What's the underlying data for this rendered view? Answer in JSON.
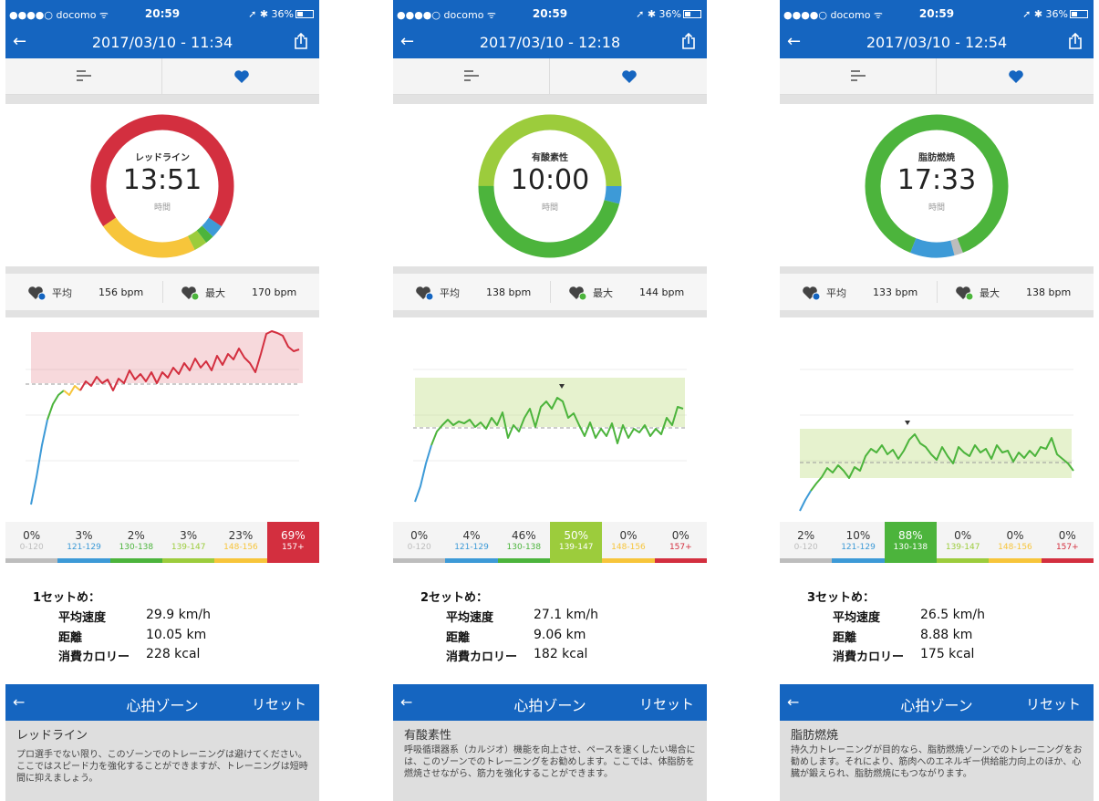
{
  "colors": {
    "primary": "#1565c0",
    "zone_gray": "#bdbdbd",
    "zone_blue": "#3d9ad7",
    "zone_green": "#4cb43c",
    "zone_lightgreen": "#9ccc3c",
    "zone_yellow": "#f7c53b",
    "zone_red": "#d32f3f"
  },
  "screens": [
    {
      "status": {
        "carrier": "●●●●○ docomo ᯤ",
        "time": "20:59",
        "battery": "➚ ✱ 36%"
      },
      "title": "2017/03/10 - 11:34",
      "ring": {
        "label": "レッドライン",
        "time": "13:51",
        "unit": "時間",
        "segments": [
          0,
          3,
          2,
          3,
          23,
          69
        ]
      },
      "avg_label": "平均",
      "avg_value": "156 bpm",
      "max_label": "最大",
      "max_value": "170 bpm",
      "zones": [
        {
          "pct": "0%",
          "range": "0-120"
        },
        {
          "pct": "3%",
          "range": "121-129"
        },
        {
          "pct": "2%",
          "range": "130-138"
        },
        {
          "pct": "3%",
          "range": "139-147"
        },
        {
          "pct": "23%",
          "range": "148-156"
        },
        {
          "pct": "69%",
          "range": "157+"
        }
      ],
      "highlight_zone": 5,
      "summary": {
        "set": "1セットめ：",
        "speed_label": "平均速度",
        "speed": "29.9 km/h",
        "dist_label": "距離",
        "dist": "10.05 km",
        "cal_label": "消費カロリー",
        "cal": "228 kcal"
      },
      "zone_nav": {
        "title": "心拍ゾーン",
        "reset": "リセット"
      },
      "zone_desc": {
        "title": "レッドライン",
        "body": "プロ選手でない限り、このゾーンでのトレーニングは避けてください。ここではスピード力を強化することができますが、トレーニングは短時間に抑えましょう。"
      }
    },
    {
      "status": {
        "carrier": "●●●●○ docomo ᯤ",
        "time": "20:59",
        "battery": "➚ ✱ 36%"
      },
      "title": "2017/03/10 - 12:18",
      "ring": {
        "label": "有酸素性",
        "time": "10:00",
        "unit": "時間",
        "segments": [
          0,
          4,
          46,
          50,
          0,
          0
        ]
      },
      "avg_label": "平均",
      "avg_value": "138 bpm",
      "max_label": "最大",
      "max_value": "144 bpm",
      "zones": [
        {
          "pct": "0%",
          "range": "0-120"
        },
        {
          "pct": "4%",
          "range": "121-129"
        },
        {
          "pct": "46%",
          "range": "130-138"
        },
        {
          "pct": "50%",
          "range": "139-147"
        },
        {
          "pct": "0%",
          "range": "148-156"
        },
        {
          "pct": "0%",
          "range": "157+"
        }
      ],
      "highlight_zone": 3,
      "summary": {
        "set": "2セットめ：",
        "speed_label": "平均速度",
        "speed": "27.1 km/h",
        "dist_label": "距離",
        "dist": "9.06 km",
        "cal_label": "消費カロリー",
        "cal": "182 kcal"
      },
      "zone_nav": {
        "title": "心拍ゾーン",
        "reset": "リセット"
      },
      "zone_desc": {
        "title": "有酸素性",
        "body": "呼吸循環器系（カルジオ）機能を向上させ、ペースを速くしたい場合には、このゾーンでのトレーニングをお勧めします。ここでは、体脂肪を燃焼させながら、筋力を強化することができます。"
      }
    },
    {
      "status": {
        "carrier": "●●●●○ docomo ᯤ",
        "time": "20:59",
        "battery": "➚ ✱ 36%"
      },
      "title": "2017/03/10 - 12:54",
      "ring": {
        "label": "脂肪燃焼",
        "time": "17:33",
        "unit": "時間",
        "segments": [
          2,
          10,
          88,
          0,
          0,
          0
        ]
      },
      "avg_label": "平均",
      "avg_value": "133 bpm",
      "max_label": "最大",
      "max_value": "138 bpm",
      "zones": [
        {
          "pct": "2%",
          "range": "0-120"
        },
        {
          "pct": "10%",
          "range": "121-129"
        },
        {
          "pct": "88%",
          "range": "130-138"
        },
        {
          "pct": "0%",
          "range": "139-147"
        },
        {
          "pct": "0%",
          "range": "148-156"
        },
        {
          "pct": "0%",
          "range": "157+"
        }
      ],
      "highlight_zone": 2,
      "summary": {
        "set": "3セットめ：",
        "speed_label": "平均速度",
        "speed": "26.5 km/h",
        "dist_label": "距離",
        "dist": "8.88 km",
        "cal_label": "消費カロリー",
        "cal": "175 kcal"
      },
      "zone_nav": {
        "title": "心拍ゾーン",
        "reset": "リセット"
      },
      "zone_desc": {
        "title": "脂肪燃焼",
        "body": "持久力トレーニングが目的なら、脂肪燃焼ゾーンでのトレーニングをお勧めします。それにより、筋肉へのエネルギー供給能力向上のほか、心臓が鍛えられ、脂肪燃焼にもつながります。"
      }
    }
  ]
}
